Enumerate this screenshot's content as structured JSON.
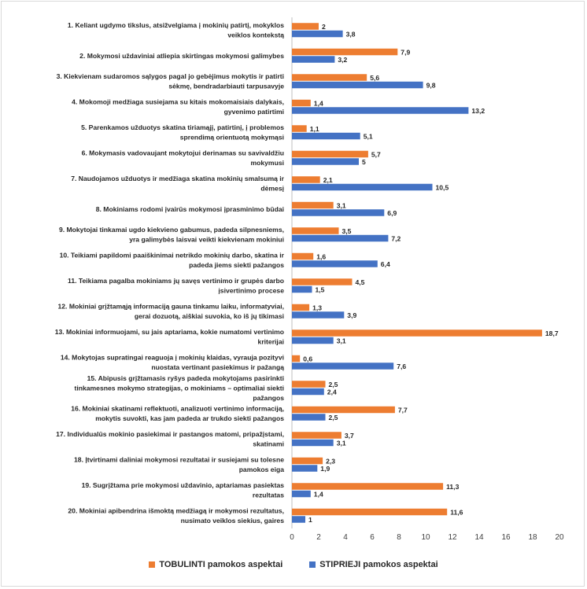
{
  "chart_data": {
    "type": "bar",
    "orientation": "horizontal",
    "categories": [
      "1. Keliant ugdymo tikslus, atsižvelgiama į mokinių patirtį, mokyklos veiklos kontekstą",
      "2. Mokymosi uždaviniai atliepia skirtingas mokymosi galimybes",
      "3. Kiekvienam sudaromos sąlygos pagal jo gebėjimus mokytis ir patirti sėkmę, bendradarbiauti tarpusavyje",
      "4. Mokomoji medžiaga susiejama su kitais mokomaisiais dalykais, gyvenimo patirtimi",
      "5. Parenkamos užduotys skatina tiriamąjį, patirtinį, į problemos sprendimą orientuotą mokymąsi",
      "6. Mokymasis vadovaujant mokytojui derinamas su savivaldžiu mokymusi",
      "7. Naudojamos užduotys ir medžiaga skatina mokinių smalsumą ir dėmesį",
      "8. Mokiniams rodomi įvairūs mokymosi įprasminimo būdai",
      "9. Mokytojai tinkamai ugdo kiekvieno gabumus, padeda silpnesniems, yra galimybės laisvai veikti kiekvienam mokiniui",
      "10. Teikiami papildomi paaiškinimai netrikdo mokinių darbo, skatina ir padeda jiems siekti pažangos",
      "11. Teikiama pagalba mokiniams jų savęs vertinimo ir grupės darbo įsivertinimo procese",
      "12. Mokiniai grįžtamąją informaciją gauna tinkamu laiku, informatyviai, gerai dozuotą, aiškiai suvokia, ko iš jų tikimasi",
      "13. Mokiniai informuojami, su jais aptariama, kokie numatomi vertinimo kriterijai",
      "14. Mokytojas supratingai reaguoja į mokinių klaidas, vyrauja pozityvi nuostata vertinant pasiekimus ir pažangą",
      "15. Abipusis grįžtamasis ryšys padeda mokytojams pasirinkti tinkamesnes mokymo strategijas, o mokiniams – optimaliai siekti pažangos",
      "16. Mokiniai skatinami reflektuoti, analizuoti vertinimo informaciją, mokytis suvokti, kas jam padeda ar trukdo siekti pažangos",
      "17. Individualūs mokinio pasiekimai ir pastangos matomi, pripažįstami, skatinami",
      "18. Įtvirtinami daliniai mokymosi rezultatai ir susiejami su tolesne pamokos eiga",
      "19. Sugrįžtama prie mokymosi uždavinio, aptariamas pasiektas rezultatas",
      "20. Mokiniai apibendrina išmoktą medžiagą ir mokymosi rezultatus, nusimato veiklos siekius, gaires"
    ],
    "series": [
      {
        "name": "TOBULINTI pamokos aspektai",
        "color": "#ED7D31",
        "values": [
          2,
          7.9,
          5.6,
          1.4,
          1.1,
          5.7,
          2.1,
          3.1,
          3.5,
          1.6,
          4.5,
          1.3,
          18.7,
          0.6,
          2.5,
          7.7,
          3.7,
          2.3,
          11.3,
          11.6
        ],
        "value_labels": [
          "2",
          "7,9",
          "5,6",
          "1,4",
          "1,1",
          "5,7",
          "2,1",
          "3,1",
          "3,5",
          "1,6",
          "4,5",
          "1,3",
          "18,7",
          "0,6",
          "2,5",
          "7,7",
          "3,7",
          "2,3",
          "11,3",
          "11,6"
        ]
      },
      {
        "name": "STIPRIEJI pamokos aspektai",
        "color": "#4472C4",
        "values": [
          3.8,
          3.2,
          9.8,
          13.2,
          5.1,
          5,
          10.5,
          6.9,
          7.2,
          6.4,
          1.5,
          3.9,
          3.1,
          7.6,
          2.4,
          2.5,
          3.1,
          1.9,
          1.4,
          1
        ],
        "value_labels": [
          "3,8",
          "3,2",
          "9,8",
          "13,2",
          "5,1",
          "5",
          "10,5",
          "6,9",
          "7,2",
          "6,4",
          "1,5",
          "3,9",
          "3,1",
          "7,6",
          "2,4",
          "2,5",
          "3,1",
          "1,9",
          "1,4",
          "1"
        ]
      }
    ],
    "x_ticks": [
      "0",
      "2",
      "4",
      "6",
      "8",
      "10",
      "12",
      "14",
      "16",
      "18",
      "20"
    ],
    "xlim": [
      0,
      20
    ],
    "grid": false,
    "legend_position": "bottom"
  }
}
